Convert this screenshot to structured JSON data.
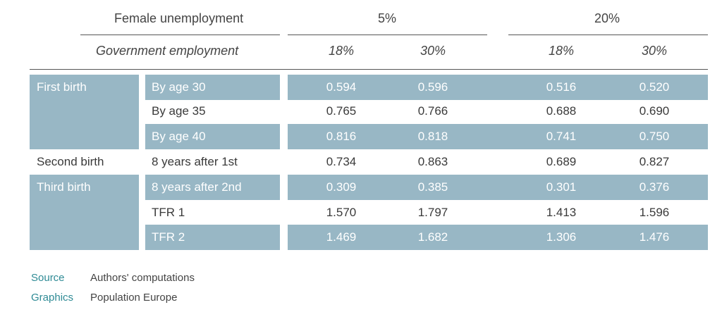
{
  "header": {
    "row1_label": "Female unemployment",
    "group1": "5%",
    "group2": "20%",
    "row2_label": "Government employment",
    "sub": [
      "18%",
      "30%",
      "18%",
      "30%"
    ]
  },
  "rows": [
    {
      "group": "First birth",
      "label": "By age 30",
      "values": [
        "0.594",
        "0.596",
        "0.516",
        "0.520"
      ],
      "shaded": true
    },
    {
      "group": "",
      "label": "By age 35",
      "values": [
        "0.765",
        "0.766",
        "0.688",
        "0.690"
      ],
      "shaded": false
    },
    {
      "group": "",
      "label": "By age 40",
      "values": [
        "0.816",
        "0.818",
        "0.741",
        "0.750"
      ],
      "shaded": true
    },
    {
      "group": "Second birth",
      "label": "8 years after 1st",
      "values": [
        "0.734",
        "0.863",
        "0.689",
        "0.827"
      ],
      "shaded": false
    },
    {
      "group": "Third birth",
      "label": "8 years after 2nd",
      "values": [
        "0.309",
        "0.385",
        "0.301",
        "0.376"
      ],
      "shaded": true
    },
    {
      "group": "",
      "label": "TFR 1",
      "values": [
        "1.570",
        "1.797",
        "1.413",
        "1.596"
      ],
      "shaded": false
    },
    {
      "group": "",
      "label": "TFR 2",
      "values": [
        "1.469",
        "1.682",
        "1.306",
        "1.476"
      ],
      "shaded": true
    }
  ],
  "footer": {
    "source_label": "Source",
    "source_value": "Authors' computations",
    "graphics_label": "Graphics",
    "graphics_value": "Population Europe"
  },
  "colors": {
    "band": "#98b7c5",
    "accent": "#2f8b95"
  }
}
